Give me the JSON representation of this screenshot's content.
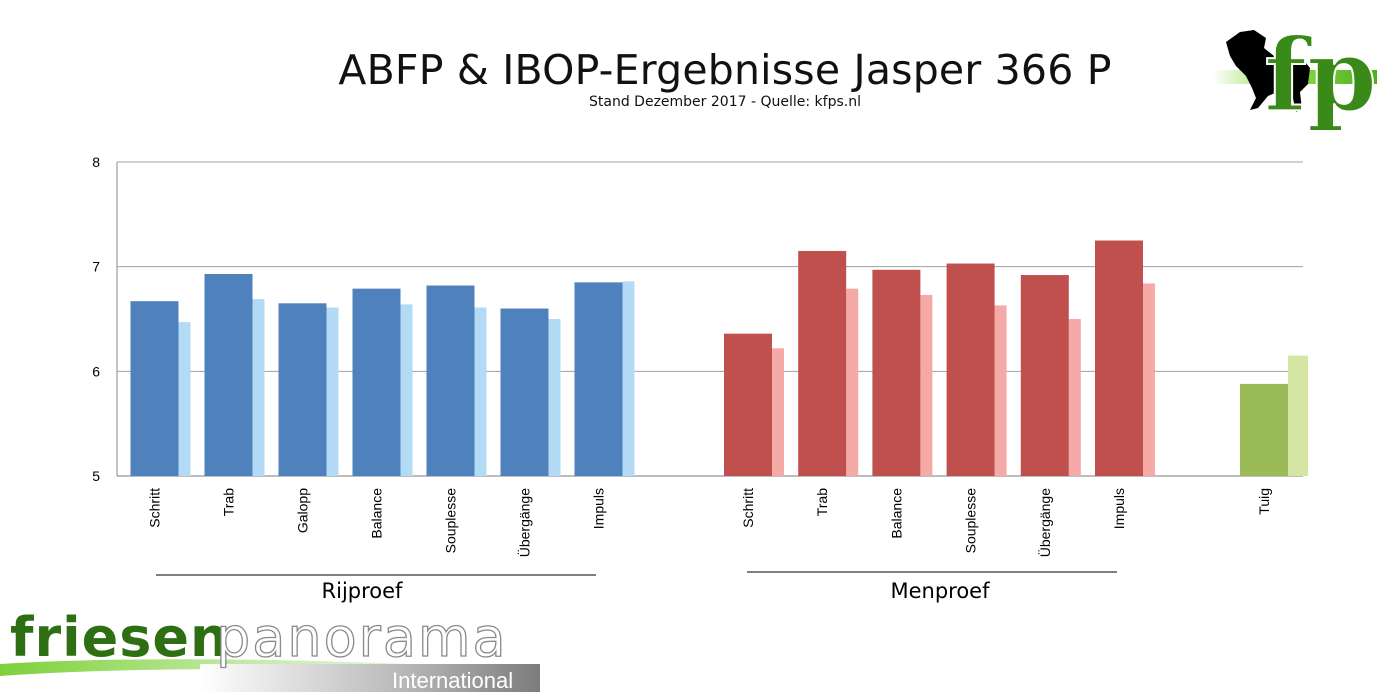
{
  "title": "ABFP & IBOP-Ergebnisse Jasper 366 P",
  "subtitle": "Stand Dezember 2017 - Quelle: kfps.nl",
  "logos": {
    "kfps_mark": "fp",
    "brand_primary": "friesen",
    "brand_secondary": "panorama",
    "brand_tertiary": "International"
  },
  "colors": {
    "rij_main": "#4f81bd",
    "rij_ref": "#b3dbf5",
    "men_main": "#c0504d",
    "men_ref": "#f5aaa8",
    "tuig_main": "#9bbb59",
    "tuig_ref": "#d5e6a4",
    "grid": "#9a9a9a",
    "brand_green": "#2e6f14"
  },
  "chart_data": {
    "type": "bar",
    "ylim": [
      5,
      8
    ],
    "yticks": [
      5,
      6,
      7,
      8
    ],
    "grid": true,
    "groups": [
      {
        "name": "Rijproef",
        "categories": [
          "Schritt",
          "Trab",
          "Galopp",
          "Balance",
          "Souplesse",
          "Übergänge",
          "Impuls"
        ],
        "series": [
          {
            "values": [
              6.67,
              6.93,
              6.65,
              6.79,
              6.82,
              6.6,
              6.85
            ],
            "color": "#4f81bd"
          },
          {
            "values": [
              6.47,
              6.69,
              6.61,
              6.64,
              6.61,
              6.5,
              6.86
            ],
            "color": "#b3dbf5"
          }
        ]
      },
      {
        "name": "Menproef",
        "categories": [
          "Schritt",
          "Trab",
          "Balance",
          "Souplesse",
          "Übergänge",
          "Impuls"
        ],
        "series": [
          {
            "values": [
              6.36,
              7.15,
              6.97,
              7.03,
              6.92,
              7.25
            ],
            "color": "#c0504d"
          },
          {
            "values": [
              6.22,
              6.79,
              6.73,
              6.63,
              6.5,
              6.84
            ],
            "color": "#f5aaa8"
          }
        ]
      },
      {
        "name": "",
        "categories": [
          "Tuig"
        ],
        "series": [
          {
            "values": [
              5.88
            ],
            "color": "#9bbb59"
          },
          {
            "values": [
              6.15
            ],
            "color": "#d5e6a4"
          }
        ]
      }
    ]
  }
}
